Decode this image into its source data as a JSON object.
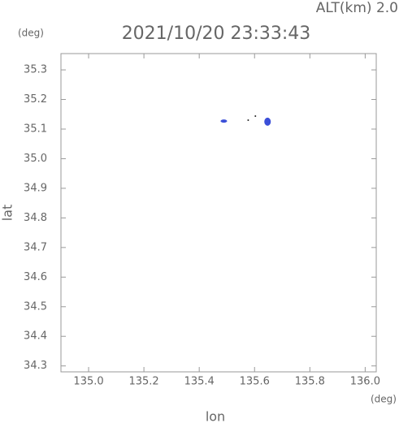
{
  "chart_data": {
    "type": "scatter",
    "title": "2021/10/20 23:33:43",
    "subtitle": "ALT(km) 2.0",
    "y_unit": "(deg)",
    "x_unit": "(deg)",
    "xlabel": "lon",
    "ylabel": "lat",
    "xlim": [
      134.9,
      136.04
    ],
    "ylim": [
      34.28,
      35.355
    ],
    "xticks": [
      {
        "value": 135,
        "label": "135.0"
      },
      135.2,
      135.4,
      135.6,
      135.8,
      {
        "value": 136,
        "label": "136.0"
      }
    ],
    "yticks": [
      34.3,
      34.4,
      34.5,
      34.6,
      34.7,
      34.8,
      34.9,
      {
        "value": 35,
        "label": "35.0"
      },
      35.1,
      35.2,
      35.3
    ],
    "series": [
      {
        "color": "#3b4fd8",
        "x": [
          135.489,
          135.647
        ],
        "y": [
          35.127,
          35.125
        ]
      },
      {
        "color": "#222222",
        "x": [
          135.603,
          135.577
        ],
        "y": [
          35.144,
          35.13
        ]
      }
    ]
  }
}
